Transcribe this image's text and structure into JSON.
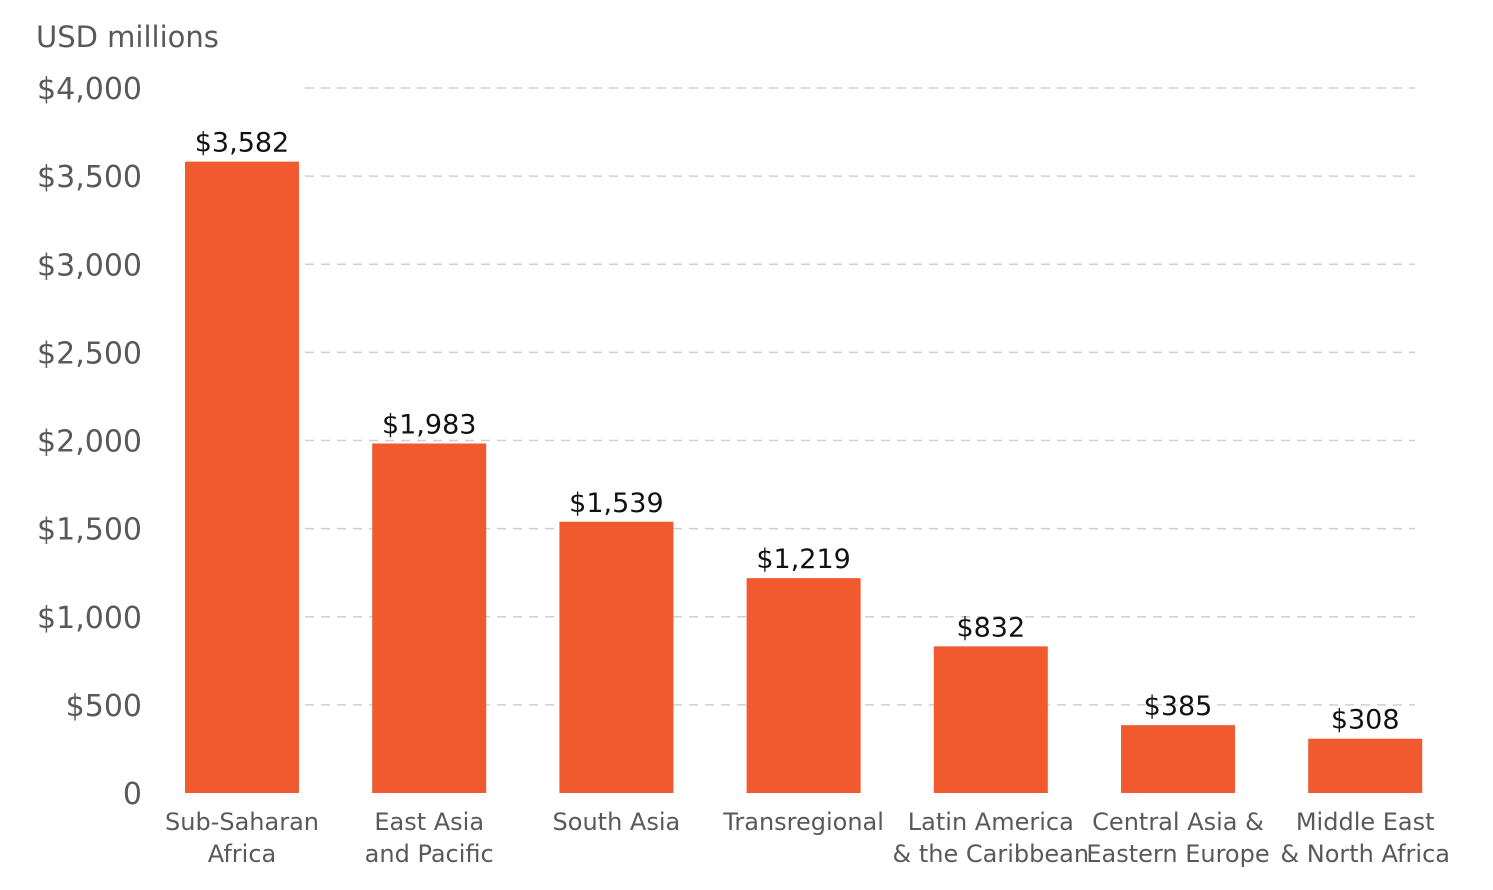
{
  "chart_data": {
    "type": "bar",
    "unit_label": "USD millions",
    "categories": [
      [
        "Sub-Saharan",
        "Africa"
      ],
      [
        "East Asia",
        "and Pacific"
      ],
      [
        "South Asia"
      ],
      [
        "Transregional"
      ],
      [
        "Latin America",
        "& the Caribbean"
      ],
      [
        "Central Asia &",
        "Eastern Europe"
      ],
      [
        "Middle East",
        "& North Africa"
      ]
    ],
    "values": [
      3582,
      1983,
      1539,
      1219,
      832,
      385,
      308
    ],
    "value_labels": [
      "$3,582",
      "$1,983",
      "$1,539",
      "$1,219",
      "$832",
      "$385",
      "$308"
    ],
    "ylim": [
      0,
      4000
    ],
    "yticks": [
      0,
      500,
      1000,
      1500,
      2000,
      2500,
      3000,
      3500,
      4000
    ],
    "ytick_labels": [
      "0",
      "$500",
      "$1,000",
      "$1,500",
      "$2,000",
      "$2,500",
      "$3,000",
      "$3,500",
      "$4,000"
    ],
    "grid": "dashed-horizontal",
    "bar_color": "#f05a2e",
    "legend": "none"
  }
}
